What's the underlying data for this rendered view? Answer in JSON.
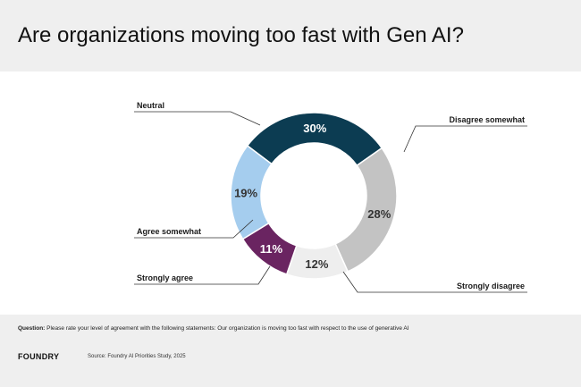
{
  "header": {
    "title": "Are organizations moving too fast with Gen AI?"
  },
  "chart_data": {
    "type": "pie",
    "donut": true,
    "title": "Are organizations moving too fast with Gen AI?",
    "categories": [
      "Neutral",
      "Disagree somewhat",
      "Strongly disagree",
      "Strongly agree",
      "Agree somewhat"
    ],
    "values": [
      30,
      28,
      12,
      11,
      19
    ],
    "value_labels": [
      "30%",
      "28%",
      "12%",
      "11%",
      "19%"
    ],
    "colors": [
      "#0c3c52",
      "#c3c3c3",
      "#eeeeee",
      "#6a2461",
      "#a5cdee"
    ],
    "label_colors": [
      "#ffffff",
      "#333333",
      "#333333",
      "#ffffff",
      "#333333"
    ]
  },
  "footer": {
    "question_label": "Question:",
    "question_text": " Please rate your level of agreement with the following statements:  Our organization is moving too fast with respect to the use of generative AI",
    "logo": "FOUNDRY",
    "source": "Source: Foundry AI Priorities Study, 2025"
  }
}
